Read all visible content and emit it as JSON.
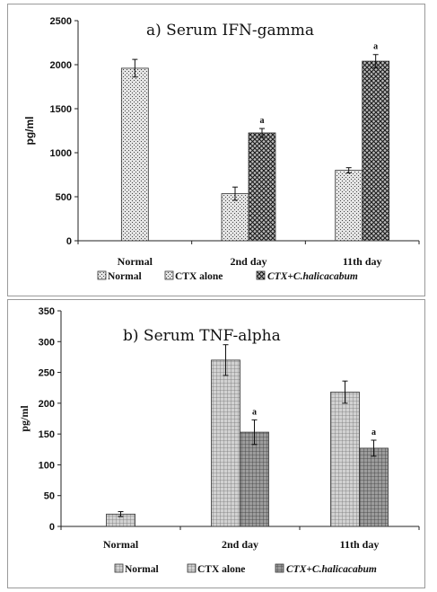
{
  "chart_data": [
    {
      "panel": "a",
      "type": "bar",
      "title": "a) Serum IFN-gamma",
      "ylabel": "pg/ml",
      "ylim": [
        0,
        2500
      ],
      "yticks": [
        0,
        500,
        1000,
        1500,
        2000,
        2500
      ],
      "categories": [
        "Normal",
        "2nd day",
        "11th day"
      ],
      "legend_position": "bottom",
      "series": [
        {
          "name": "Normal",
          "pattern": "dots",
          "values": [
            1960,
            null,
            null
          ],
          "errors": [
            100,
            null,
            null
          ]
        },
        {
          "name": "CTX  alone",
          "pattern": "dots",
          "values": [
            null,
            535,
            800
          ],
          "errors": [
            null,
            75,
            30
          ]
        },
        {
          "name": "CTX+C.halicacabum",
          "pattern": "crosshatch",
          "italic": true,
          "values": [
            null,
            1225,
            2040
          ],
          "errors": [
            null,
            50,
            75
          ]
        }
      ],
      "significance": [
        {
          "category": "2nd day",
          "series": "CTX+C.halicacabum",
          "label": "a"
        },
        {
          "category": "11th day",
          "series": "CTX+C.halicacabum",
          "label": "a"
        }
      ]
    },
    {
      "panel": "b",
      "type": "bar",
      "title": "b) Serum TNF-alpha",
      "ylabel": "pg/ml",
      "ylim": [
        0,
        350
      ],
      "yticks": [
        0,
        50,
        100,
        150,
        200,
        250,
        300,
        350
      ],
      "categories": [
        "Normal",
        "2nd day",
        "11th day"
      ],
      "legend_position": "bottom",
      "series": [
        {
          "name": "Normal",
          "pattern": "grid",
          "values": [
            20,
            null,
            null
          ],
          "errors": [
            4,
            null,
            null
          ]
        },
        {
          "name": "CTX  alone",
          "pattern": "grid",
          "values": [
            null,
            270,
            218
          ],
          "errors": [
            null,
            25,
            18
          ]
        },
        {
          "name": "CTX+C.halicacabum",
          "pattern": "grid-dark",
          "italic": true,
          "values": [
            null,
            153,
            127
          ],
          "errors": [
            null,
            20,
            13
          ]
        }
      ],
      "significance": [
        {
          "category": "2nd day",
          "series": "CTX+C.halicacabum",
          "label": "a"
        },
        {
          "category": "11th day",
          "series": "CTX+C.halicacabum",
          "label": "a"
        }
      ]
    }
  ]
}
